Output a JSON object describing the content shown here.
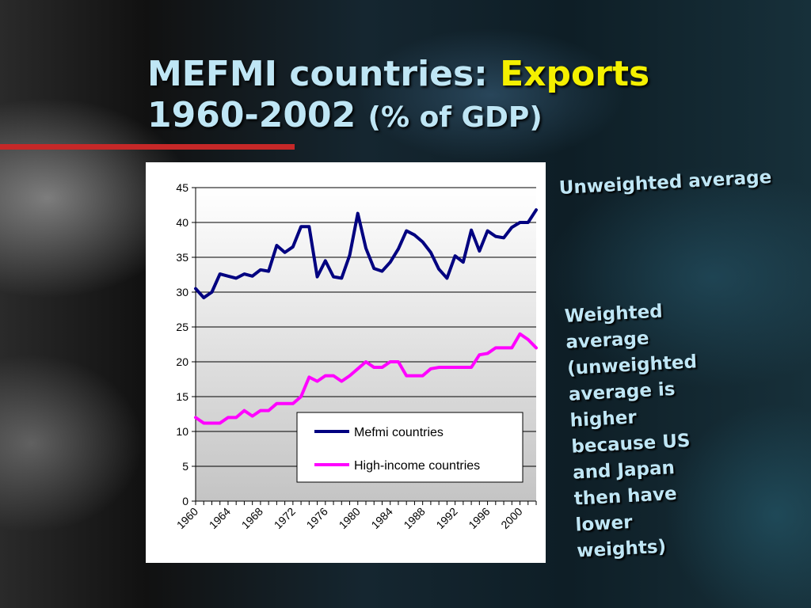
{
  "slide": {
    "title_part1": "MEFMI countries: ",
    "title_highlight": "Exports",
    "title_line2": "1960-2002 ",
    "title_units": "(% of GDP)",
    "note_unweighted": "Unweighted average",
    "note_weighted": "Weighted\naverage\n(unweighted\naverage is\nhigher\nbecause US\nand Japan\nthen have\nlower\nweights)"
  },
  "chart_data": {
    "type": "line",
    "x": [
      1960,
      1961,
      1962,
      1963,
      1964,
      1965,
      1966,
      1967,
      1968,
      1969,
      1970,
      1971,
      1972,
      1973,
      1974,
      1975,
      1976,
      1977,
      1978,
      1979,
      1980,
      1981,
      1982,
      1983,
      1984,
      1985,
      1986,
      1987,
      1988,
      1989,
      1990,
      1991,
      1992,
      1993,
      1994,
      1995,
      1996,
      1997,
      1998,
      1999,
      2000,
      2001,
      2002
    ],
    "x_ticks": [
      "1960",
      "1964",
      "1968",
      "1972",
      "1976",
      "1980",
      "1984",
      "1988",
      "1992",
      "1996",
      "2000"
    ],
    "y_ticks": [
      "0",
      "5",
      "10",
      "15",
      "20",
      "25",
      "30",
      "35",
      "40",
      "45"
    ],
    "ylim": [
      0,
      45
    ],
    "grid": true,
    "legend_position": "lower-right",
    "series": [
      {
        "name": "Mefmi countries",
        "color": "#000080",
        "values": [
          30.5,
          29.2,
          30.0,
          32.6,
          32.3,
          32.0,
          32.6,
          32.3,
          33.2,
          33.0,
          36.7,
          35.7,
          36.5,
          39.4,
          39.4,
          32.2,
          34.5,
          32.2,
          32.0,
          35.3,
          41.3,
          36.3,
          33.4,
          33.0,
          34.3,
          36.2,
          38.8,
          38.2,
          37.2,
          35.7,
          33.3,
          32.0,
          35.2,
          34.3,
          38.9,
          35.9,
          38.8,
          38.0,
          37.8,
          39.3,
          40.0,
          40.0,
          41.8
        ]
      },
      {
        "name": "High-income countries",
        "color": "#ff00ff",
        "values": [
          12.0,
          11.2,
          11.2,
          11.2,
          12.0,
          12.0,
          13.0,
          12.2,
          13.0,
          13.0,
          14.0,
          14.0,
          14.0,
          15.0,
          17.8,
          17.2,
          18.0,
          18.0,
          17.2,
          18.0,
          19.0,
          20.0,
          19.2,
          19.2,
          20.0,
          20.0,
          18.0,
          18.0,
          18.0,
          19.0,
          19.2,
          19.2,
          19.2,
          19.2,
          19.2,
          21.0,
          21.2,
          22.0,
          22.0,
          22.0,
          24.0,
          23.2,
          22.0
        ]
      }
    ]
  }
}
